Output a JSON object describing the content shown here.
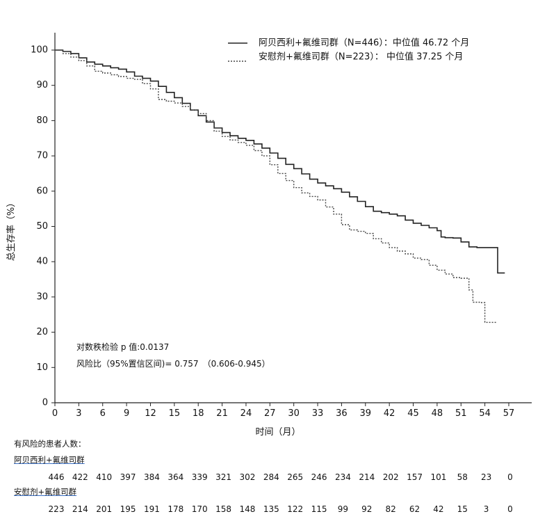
{
  "chart_data": {
    "type": "line",
    "subtype": "kaplan-meier",
    "ylabel": "总生存率（%）",
    "xlabel": "时间（月）",
    "xlim": [
      0,
      59
    ],
    "ylim": [
      0,
      104
    ],
    "xticks": [
      0,
      3,
      6,
      9,
      12,
      15,
      18,
      21,
      24,
      27,
      30,
      33,
      36,
      39,
      42,
      45,
      48,
      51,
      54,
      57
    ],
    "yticks": [
      0,
      10,
      20,
      30,
      40,
      50,
      60,
      70,
      80,
      90,
      100
    ],
    "grid": false,
    "legend_position": "top-right",
    "series": [
      {
        "name": "阿贝西利+氟维司群（N=446）：中位值 46.72 个月",
        "style": "solid",
        "color": "#222222",
        "points": [
          [
            0,
            100
          ],
          [
            1,
            99.6
          ],
          [
            2,
            99
          ],
          [
            3,
            97.8
          ],
          [
            4,
            96.6
          ],
          [
            5,
            96
          ],
          [
            6,
            95.5
          ],
          [
            7,
            95
          ],
          [
            8,
            94.6
          ],
          [
            9,
            93.8
          ],
          [
            10,
            92.6
          ],
          [
            11,
            92
          ],
          [
            12,
            91.2
          ],
          [
            13,
            89.7
          ],
          [
            14,
            88
          ],
          [
            15,
            86.5
          ],
          [
            16,
            84.9
          ],
          [
            17,
            83
          ],
          [
            18,
            81.4
          ],
          [
            19,
            79.6
          ],
          [
            20,
            77.9
          ],
          [
            21,
            76.6
          ],
          [
            22,
            75.7
          ],
          [
            23,
            75
          ],
          [
            24,
            74.4
          ],
          [
            25,
            73.4
          ],
          [
            26,
            72.2
          ],
          [
            27,
            70.8
          ],
          [
            28,
            69.3
          ],
          [
            29,
            67.6
          ],
          [
            30,
            66.4
          ],
          [
            31,
            64.9
          ],
          [
            32,
            63.4
          ],
          [
            33,
            62.3
          ],
          [
            34,
            61.5
          ],
          [
            35,
            60.7
          ],
          [
            36,
            59.7
          ],
          [
            37,
            58.4
          ],
          [
            38,
            57.1
          ],
          [
            39,
            55.6
          ],
          [
            40,
            54.3
          ],
          [
            41,
            53.9
          ],
          [
            42,
            53.5
          ],
          [
            43,
            53
          ],
          [
            44,
            51.8
          ],
          [
            45,
            50.9
          ],
          [
            46,
            50.3
          ],
          [
            47,
            49.6
          ],
          [
            48,
            48.8
          ],
          [
            48.5,
            47
          ],
          [
            49,
            46.8
          ],
          [
            50,
            46.7
          ],
          [
            51,
            45.6
          ],
          [
            52,
            44.2
          ],
          [
            53,
            44
          ],
          [
            55,
            44
          ],
          [
            55.6,
            44
          ],
          [
            55.6,
            36.8
          ],
          [
            56.5,
            36.8
          ]
        ]
      },
      {
        "name": "安慰剂+氟维司群（N=223）： 中位值 37.25 个月",
        "style": "dotted",
        "color": "#444444",
        "points": [
          [
            0,
            100
          ],
          [
            1,
            99
          ],
          [
            2,
            98
          ],
          [
            3,
            97
          ],
          [
            4,
            95.5
          ],
          [
            5,
            94
          ],
          [
            6,
            93.5
          ],
          [
            7,
            93
          ],
          [
            8,
            92.5
          ],
          [
            9,
            92
          ],
          [
            10,
            91.7
          ],
          [
            11,
            90.5
          ],
          [
            12,
            89
          ],
          [
            13,
            86
          ],
          [
            14,
            85.5
          ],
          [
            15,
            85
          ],
          [
            16,
            84
          ],
          [
            17,
            83
          ],
          [
            18,
            82
          ],
          [
            19,
            80
          ],
          [
            20,
            77
          ],
          [
            21,
            75.5
          ],
          [
            22,
            74.5
          ],
          [
            23,
            73.8
          ],
          [
            24,
            73
          ],
          [
            25,
            71.5
          ],
          [
            26,
            70
          ],
          [
            27,
            67.5
          ],
          [
            28,
            65
          ],
          [
            29,
            63
          ],
          [
            30,
            61
          ],
          [
            31,
            59.5
          ],
          [
            32,
            58.5
          ],
          [
            33,
            57.5
          ],
          [
            34,
            55.5
          ],
          [
            35,
            53.5
          ],
          [
            36,
            50.5
          ],
          [
            37,
            49
          ],
          [
            38,
            48.6
          ],
          [
            39,
            48
          ],
          [
            40,
            46.5
          ],
          [
            41,
            45.3
          ],
          [
            42,
            44
          ],
          [
            43,
            43
          ],
          [
            44,
            42.2
          ],
          [
            45,
            41
          ],
          [
            46,
            40.6
          ],
          [
            47,
            39
          ],
          [
            48,
            37.6
          ],
          [
            49,
            36.5
          ],
          [
            50,
            35.5
          ],
          [
            51,
            35.3
          ],
          [
            52,
            32
          ],
          [
            52.5,
            28.5
          ],
          [
            53.5,
            28.4
          ],
          [
            54,
            22.8
          ],
          [
            55.5,
            22.8
          ]
        ]
      }
    ],
    "annotations": [
      "对数秩检验 p 值:0.0137",
      "风险比（95%置信区间)= 0.757　（0.606-0.945）"
    ]
  },
  "risk_table": {
    "title": "有风险的患者人数：",
    "groups": [
      {
        "label": "阿贝西利+氟维司群",
        "counts": [
          "446",
          "422",
          "410",
          "397",
          "384",
          "364",
          "339",
          "321",
          "302",
          "284",
          "265",
          "246",
          "234",
          "214",
          "202",
          "157",
          "101",
          "58",
          "23",
          "0"
        ]
      },
      {
        "label": "安慰剂+氟维司群",
        "counts": [
          "223",
          "214",
          "201",
          "195",
          "191",
          "178",
          "170",
          "158",
          "148",
          "135",
          "122",
          "115",
          "99",
          "92",
          "82",
          "62",
          "42",
          "15",
          "3",
          "0"
        ]
      }
    ]
  }
}
